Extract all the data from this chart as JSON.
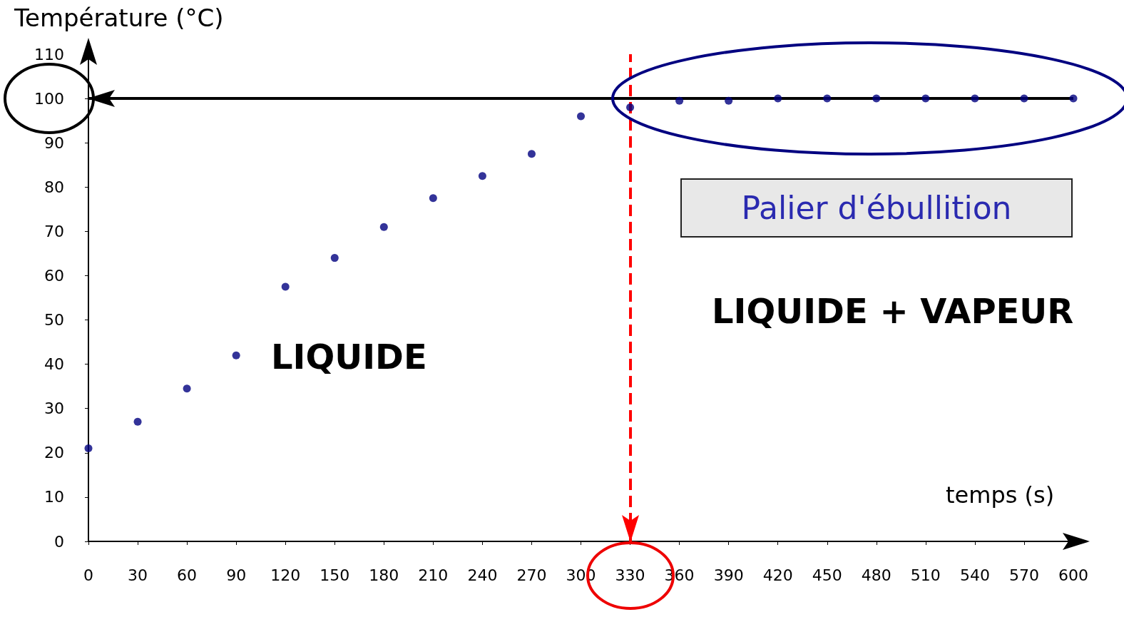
{
  "chart_data": {
    "type": "scatter",
    "xlabel": "temps (s)",
    "ylabel": "Température (°C)",
    "x": [
      0,
      30,
      60,
      90,
      120,
      150,
      180,
      210,
      240,
      270,
      300,
      330,
      360,
      390,
      420,
      450,
      480,
      510,
      540,
      570,
      600
    ],
    "series": [
      {
        "color": "#000080",
        "values": [
          21,
          27,
          34.5,
          42,
          57.5,
          64,
          71,
          77.5,
          82.5,
          87.5,
          96,
          98,
          99.5,
          99.5,
          100,
          100,
          100,
          100,
          100,
          100,
          100
        ]
      }
    ],
    "xlim": [
      0,
      600
    ],
    "xticks": [
      0,
      30,
      60,
      90,
      120,
      150,
      180,
      210,
      240,
      270,
      300,
      330,
      360,
      390,
      420,
      450,
      480,
      510,
      540,
      570,
      600
    ],
    "ylim": [
      0,
      110
    ],
    "yticks": [
      0,
      10,
      20,
      30,
      40,
      50,
      60,
      70,
      80,
      90,
      100,
      110
    ],
    "ref_lines": [
      {
        "axis": "y",
        "value": 100,
        "color": "#000000",
        "line_style": "solid"
      },
      {
        "axis": "x",
        "value": 330,
        "color": "#ff0000",
        "line_style": "dashed"
      }
    ],
    "annotations": [
      "Palier d'ébullition",
      "LIQUIDE",
      "LIQUIDE + VAPEUR"
    ],
    "grid": false,
    "marker": "circle"
  }
}
